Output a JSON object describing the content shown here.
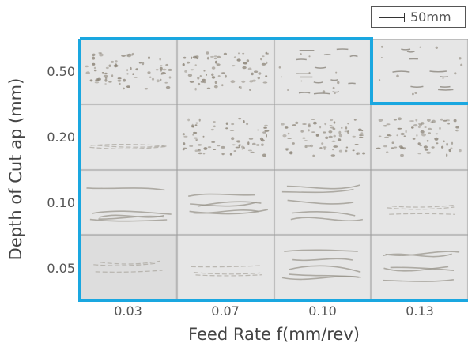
{
  "scale_bar": {
    "label": "50mm"
  },
  "axes": {
    "y_title": "Depth of Cut ap (mm)",
    "x_title": "Feed Rate f(mm/rev)",
    "row_labels": [
      "0.50",
      "0.20",
      "0.10",
      "0.05"
    ],
    "col_labels": [
      "0.03",
      "0.07",
      "0.10",
      "0.13"
    ]
  },
  "colors": {
    "outline": "#1aa7e0",
    "cell_border": "#9a9a9a"
  },
  "cells": [
    [
      "dense-dots",
      "dense-dots",
      "dashes-mixed",
      "sparse-mixed"
    ],
    [
      "faint-streaks",
      "dense-dots",
      "dense-dots",
      "dense-dots"
    ],
    [
      "long-curls",
      "long-curls",
      "long-curls",
      "faint-streaks"
    ],
    [
      "faint-streaks",
      "faint-streaks",
      "long-curls",
      "long-curls"
    ]
  ]
}
